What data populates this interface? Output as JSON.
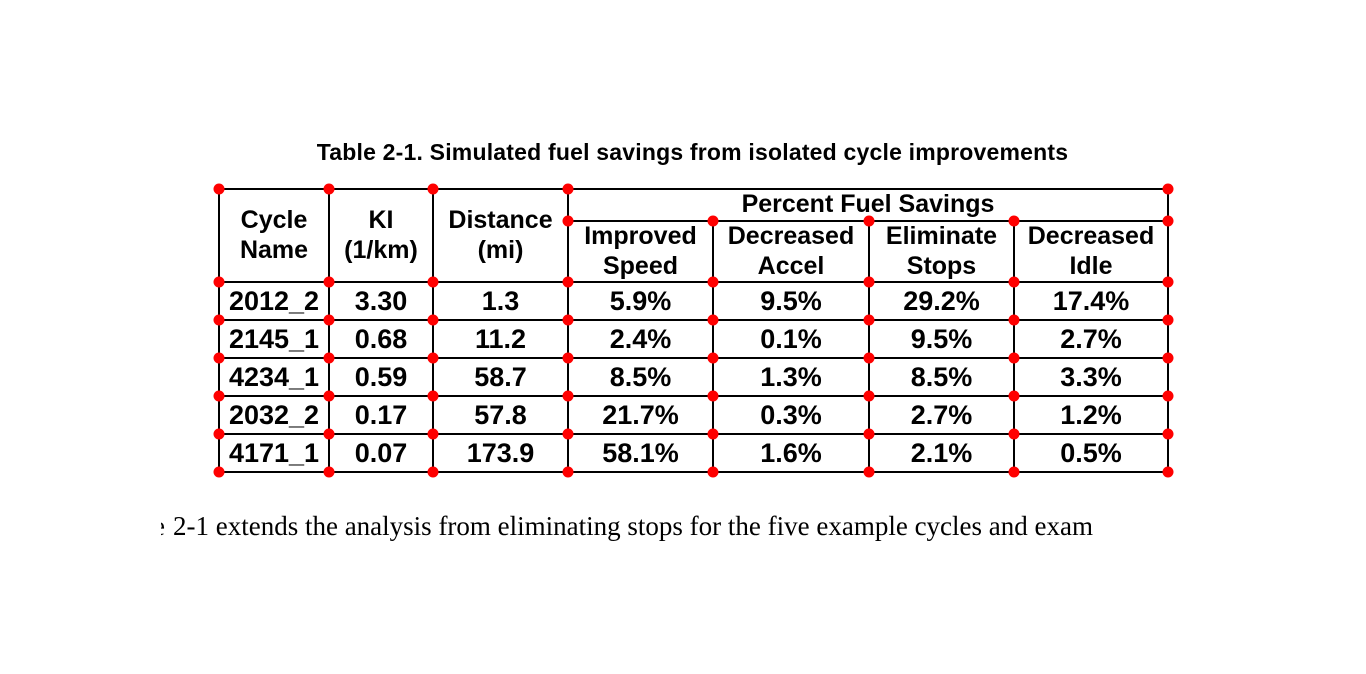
{
  "title": "Table 2-1. Simulated fuel savings from isolated cycle improvements",
  "table": {
    "group_header": "Percent Fuel Savings",
    "columns": [
      "Cycle\nName",
      "KI\n(1/km)",
      "Distance\n(mi)",
      "Improved\nSpeed",
      "Decreased\nAccel",
      "Eliminate\nStops",
      "Decreased\nIdle"
    ],
    "rows": [
      [
        "2012_2",
        "3.30",
        "1.3",
        "5.9%",
        "9.5%",
        "29.2%",
        "17.4%"
      ],
      [
        "2145_1",
        "0.68",
        "11.2",
        "2.4%",
        "0.1%",
        "9.5%",
        "2.7%"
      ],
      [
        "4234_1",
        "0.59",
        "58.7",
        "8.5%",
        "1.3%",
        "8.5%",
        "3.3%"
      ],
      [
        "2032_2",
        "0.17",
        "57.8",
        "21.7%",
        "0.3%",
        "2.7%",
        "1.2%"
      ],
      [
        "4171_1",
        "0.07",
        "173.9",
        "58.1%",
        "1.6%",
        "2.1%",
        "0.5%"
      ]
    ]
  },
  "caption": {
    "clipped_prefix": "e",
    "text": "2-1 extends the analysis from eliminating stops for the five example cycles and exam"
  },
  "annotation": {
    "marker_color": "#ff0000",
    "text_color": "#000000"
  }
}
